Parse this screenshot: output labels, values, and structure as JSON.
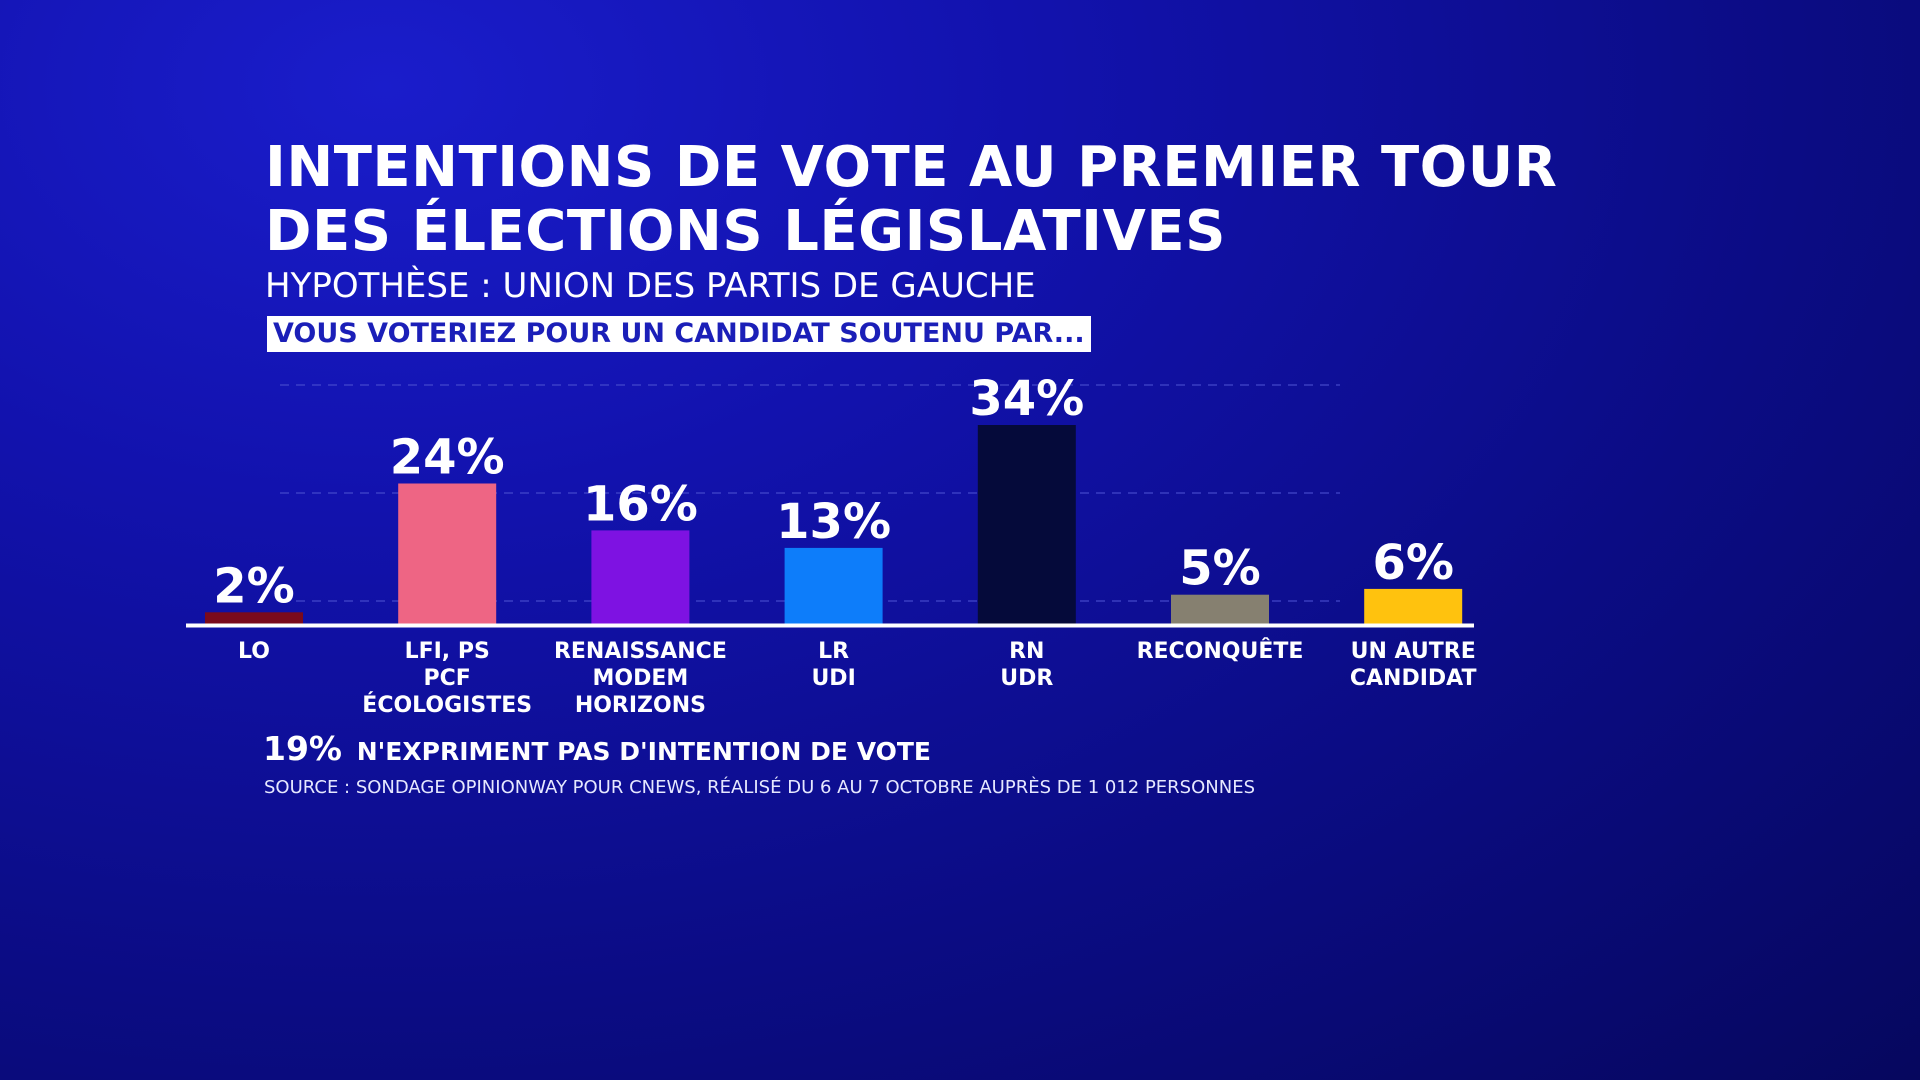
{
  "title_lines": [
    "INTENTIONS DE VOTE AU PREMIER TOUR",
    "DES ÉLECTIONS LÉGISLATIVES"
  ],
  "subtitle": "HYPOTHÈSE :  UNION DES PARTIS DE GAUCHE",
  "question": "VOUS VOTERIEZ POUR UN CANDIDAT SOUTENU PAR...",
  "footnote": {
    "value": "19%",
    "text": "N'EXPRIMENT PAS D'INTENTION DE VOTE"
  },
  "source": "SOURCE : SONDAGE OPINIONWAY POUR CNEWS, RÉALISÉ DU 6 AU 7 OCTOBRE AUPRÈS DE 1 012 PERSONNES",
  "colors": {
    "background": "#0d0f9a",
    "question_box": "#ffffff",
    "question_text": "#1b1fb8"
  },
  "chart_data": {
    "type": "bar",
    "categories": [
      [
        "LO"
      ],
      [
        "LFI, PS",
        "PCF",
        "ÉCOLOGISTES"
      ],
      [
        "RENAISSANCE",
        "MODEM",
        "HORIZONS"
      ],
      [
        "LR",
        "UDI"
      ],
      [
        "RN",
        "UDR"
      ],
      [
        "RECONQUÊTE"
      ],
      [
        "UN AUTRE",
        "CANDIDAT"
      ]
    ],
    "values": [
      2,
      24,
      16,
      13,
      34,
      5,
      6
    ],
    "value_labels": [
      "2%",
      "24%",
      "16%",
      "13%",
      "34%",
      "5%",
      "6%"
    ],
    "colors": [
      "#7a0a1c",
      "#ee6584",
      "#7e12e2",
      "#0d7dfa",
      "#050a3a",
      "#868070",
      "#ffc20e"
    ],
    "unit": "%",
    "ylim": [
      0,
      34
    ],
    "grid": true,
    "legend": "none"
  }
}
